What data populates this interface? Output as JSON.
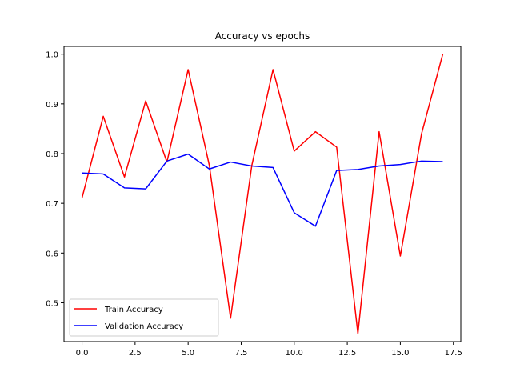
{
  "chart_data": {
    "type": "line",
    "title": "Accuracy vs epochs",
    "xlabel": "",
    "ylabel": "",
    "x": [
      0,
      1,
      2,
      3,
      4,
      5,
      6,
      7,
      8,
      9,
      10,
      11,
      12,
      13,
      14,
      15,
      16,
      17
    ],
    "series": [
      {
        "name": "Train Accuracy",
        "color": "#ff0000",
        "values": [
          0.711,
          0.875,
          0.753,
          0.906,
          0.783,
          0.969,
          0.776,
          0.469,
          0.776,
          0.969,
          0.805,
          0.844,
          0.813,
          0.438,
          0.844,
          0.594,
          0.84,
          1.0
        ]
      },
      {
        "name": "Validation Accuracy",
        "color": "#0000ff",
        "values": [
          0.761,
          0.759,
          0.731,
          0.729,
          0.785,
          0.799,
          0.769,
          0.783,
          0.775,
          0.772,
          0.681,
          0.654,
          0.766,
          0.768,
          0.775,
          0.778,
          0.785,
          0.784
        ]
      }
    ],
    "xlim": [
      -0.85,
      17.85
    ],
    "ylim": [
      0.4219,
      1.0156
    ],
    "xticks": [
      0.0,
      2.5,
      5.0,
      7.5,
      10.0,
      12.5,
      15.0,
      17.5
    ],
    "xtick_labels": [
      "0.0",
      "2.5",
      "5.0",
      "7.5",
      "10.0",
      "12.5",
      "15.0",
      "17.5"
    ],
    "yticks": [
      0.5,
      0.6,
      0.7,
      0.8,
      0.9,
      1.0
    ],
    "ytick_labels": [
      "0.5",
      "0.6",
      "0.7",
      "0.8",
      "0.9",
      "1.0"
    ],
    "grid": false,
    "legend_position": "lower-left"
  }
}
